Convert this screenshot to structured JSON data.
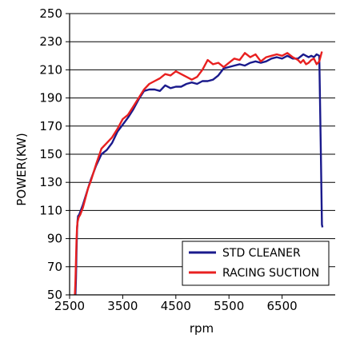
{
  "chart_data": {
    "type": "line",
    "title": "",
    "xlabel": "rpm",
    "ylabel": "POWER(KW)",
    "xlim": [
      2500,
      7500
    ],
    "ylim": [
      50,
      250
    ],
    "xticks": [
      2500,
      3500,
      4500,
      5500,
      6500
    ],
    "yticks": [
      50,
      70,
      90,
      110,
      130,
      150,
      170,
      190,
      210,
      230,
      250
    ],
    "grid": "horizontal",
    "legend_position": "bottom-right",
    "series": [
      {
        "name": "STD CLEANER",
        "color": "#1a1a8c",
        "x": [
          2610,
          2620,
          2630,
          2640,
          2650,
          2660,
          2680,
          2700,
          2750,
          2800,
          2850,
          2900,
          3000,
          3100,
          3200,
          3300,
          3400,
          3500,
          3600,
          3700,
          3800,
          3900,
          4000,
          4100,
          4200,
          4300,
          4400,
          4500,
          4600,
          4700,
          4800,
          4900,
          5000,
          5100,
          5200,
          5300,
          5400,
          5500,
          5600,
          5700,
          5800,
          5900,
          6000,
          6100,
          6200,
          6300,
          6400,
          6500,
          6600,
          6700,
          6800,
          6900,
          6950,
          7000,
          7050,
          7100,
          7150,
          7200,
          7230,
          7250,
          7260
        ],
        "y": [
          50,
          62,
          80,
          96,
          103,
          106,
          107,
          109,
          114,
          120,
          126,
          132,
          142,
          150,
          153,
          158,
          166,
          171,
          176,
          182,
          189,
          195,
          196,
          196,
          195,
          199,
          197,
          198,
          198,
          200,
          201,
          200,
          202,
          202,
          203,
          206,
          211,
          212,
          213,
          214,
          213,
          215,
          216,
          215,
          216,
          218,
          219,
          218,
          220,
          218,
          218,
          221,
          220,
          219,
          220,
          219,
          221,
          220,
          150,
          100,
          98
        ]
      },
      {
        "name": "RACING SUCTION",
        "color": "#e82020",
        "x": [
          2600,
          2610,
          2620,
          2630,
          2640,
          2650,
          2670,
          2700,
          2750,
          2800,
          2850,
          2900,
          3000,
          3100,
          3200,
          3300,
          3400,
          3500,
          3600,
          3700,
          3800,
          3900,
          4000,
          4100,
          4200,
          4300,
          4400,
          4500,
          4600,
          4700,
          4800,
          4900,
          5000,
          5100,
          5200,
          5300,
          5400,
          5500,
          5600,
          5700,
          5800,
          5900,
          6000,
          6100,
          6200,
          6300,
          6400,
          6500,
          6600,
          6700,
          6800,
          6850,
          6900,
          6950,
          7000,
          7050,
          7100,
          7150,
          7200,
          7250
        ],
        "y": [
          50,
          60,
          75,
          88,
          98,
          102,
          105,
          107,
          112,
          119,
          126,
          131,
          143,
          154,
          158,
          162,
          168,
          175,
          178,
          184,
          190,
          196,
          200,
          202,
          204,
          207,
          206,
          209,
          207,
          205,
          203,
          205,
          210,
          217,
          214,
          215,
          212,
          215,
          218,
          217,
          222,
          219,
          221,
          216,
          219,
          220,
          221,
          220,
          222,
          219,
          217,
          215,
          217,
          214,
          215,
          217,
          218,
          214,
          216,
          223
        ]
      }
    ]
  }
}
